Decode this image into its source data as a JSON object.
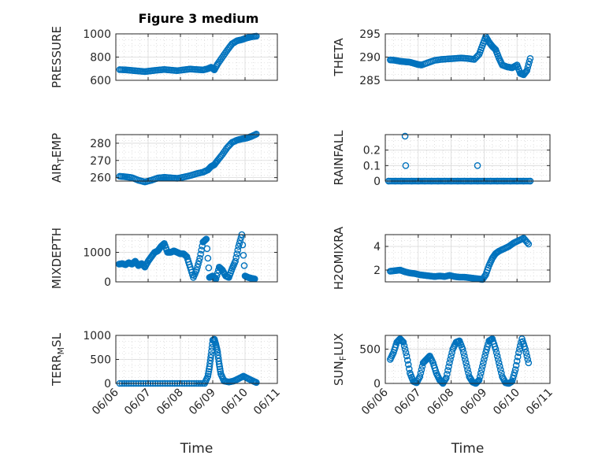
{
  "figure": {
    "title": "Figure 3 medium"
  },
  "colors": {
    "series": "#0072bd",
    "axis": "#262626",
    "grid": "#d9d9d9"
  },
  "chart_data": [
    {
      "type": "scatter",
      "ylabel": "PRESSURE",
      "xlabel": "",
      "title": "Figure 3 medium",
      "xlim": [
        0,
        5
      ],
      "ylim": [
        600,
        1000
      ],
      "yticks": [
        600,
        800,
        1000
      ],
      "xticks": [
        "06/06",
        "06/07",
        "06/08",
        "06/09",
        "06/10",
        "06/11"
      ],
      "show_xticklabels": false,
      "grid": true,
      "series": [
        {
          "x": [
            0.12,
            0.3,
            0.5,
            0.7,
            0.9,
            1.1,
            1.3,
            1.5,
            1.7,
            1.9,
            2.1,
            2.3,
            2.5,
            2.7,
            2.85,
            2.95,
            3.05,
            3.15,
            3.3,
            3.45,
            3.6,
            3.75,
            3.9,
            4.05,
            4.2,
            4.35
          ],
          "y": [
            692,
            690,
            685,
            680,
            675,
            682,
            688,
            693,
            688,
            683,
            690,
            697,
            693,
            689,
            700,
            712,
            690,
            740,
            800,
            860,
            915,
            940,
            950,
            965,
            975,
            980
          ]
        }
      ]
    },
    {
      "type": "scatter",
      "ylabel": "THETA",
      "xlabel": "",
      "title": "",
      "xlim": [
        0,
        5
      ],
      "ylim": [
        285,
        295
      ],
      "yticks": [
        285,
        290,
        295
      ],
      "xticks": [
        "06/06",
        "06/07",
        "06/08",
        "06/09",
        "06/10",
        "06/11"
      ],
      "show_xticklabels": false,
      "grid": true,
      "series": [
        {
          "x": [
            0.15,
            0.3,
            0.45,
            0.6,
            0.75,
            0.9,
            1.0,
            1.1,
            1.3,
            1.5,
            1.7,
            1.9,
            2.1,
            2.3,
            2.5,
            2.7,
            2.85,
            2.95,
            3.05,
            3.15,
            3.25,
            3.35,
            3.45,
            3.55,
            3.7,
            3.85,
            4.0,
            4.1,
            4.2,
            4.3,
            4.4
          ],
          "y": [
            289.4,
            289.3,
            289.1,
            289.0,
            288.9,
            288.6,
            288.4,
            288.3,
            288.8,
            289.3,
            289.5,
            289.6,
            289.7,
            289.8,
            289.7,
            289.5,
            290.6,
            292.5,
            294.4,
            293.2,
            292.3,
            291.6,
            289.8,
            288.3,
            287.9,
            287.7,
            288.3,
            286.5,
            286.2,
            287.1,
            289.7
          ]
        }
      ]
    },
    {
      "type": "scatter",
      "ylabel": "AIR_TEMP",
      "xlabel": "",
      "title": "",
      "xlim": [
        0,
        5
      ],
      "ylim": [
        258,
        285
      ],
      "yticks": [
        260,
        270,
        280
      ],
      "xticks": [
        "06/06",
        "06/07",
        "06/08",
        "06/09",
        "06/10",
        "06/11"
      ],
      "show_xticklabels": false,
      "grid": true,
      "series": [
        {
          "x": [
            0.12,
            0.3,
            0.5,
            0.7,
            0.9,
            1.1,
            1.3,
            1.5,
            1.7,
            1.9,
            2.1,
            2.3,
            2.5,
            2.7,
            2.85,
            2.95,
            3.05,
            3.15,
            3.3,
            3.45,
            3.6,
            3.75,
            3.9,
            4.05,
            4.2,
            4.35
          ],
          "y": [
            260.8,
            260.5,
            260,
            258.5,
            257.5,
            258.5,
            259.8,
            260.2,
            259.9,
            259.6,
            260.3,
            261.2,
            262.3,
            263.2,
            264.5,
            266.5,
            267.5,
            270,
            273.5,
            277.5,
            280.5,
            281.8,
            282.5,
            283,
            284,
            285.3
          ]
        }
      ]
    },
    {
      "type": "scatter",
      "ylabel": "RAINFALL",
      "xlabel": "",
      "title": "",
      "xlim": [
        0,
        5
      ],
      "ylim": [
        0,
        0.3
      ],
      "yticks": [
        0,
        0.1,
        0.2
      ],
      "xticks": [
        "06/06",
        "06/07",
        "06/08",
        "06/09",
        "06/10",
        "06/11"
      ],
      "show_xticklabels": false,
      "grid": true,
      "series": [
        {
          "x": [
            0.1,
            0.3,
            0.5,
            0.6,
            0.62,
            0.8,
            1.0,
            1.2,
            1.4,
            1.6,
            1.8,
            2.0,
            2.2,
            2.4,
            2.6,
            2.8,
            2.8,
            3.0,
            3.2,
            3.4,
            3.6,
            3.8,
            4.0,
            4.2,
            4.4
          ],
          "y": [
            0,
            0,
            0,
            0.29,
            0.1,
            0,
            0,
            0,
            0,
            0,
            0,
            0,
            0,
            0,
            0,
            0.1,
            0,
            0,
            0,
            0,
            0,
            0,
            0,
            0,
            0
          ]
        }
      ]
    },
    {
      "type": "scatter",
      "ylabel": "MIXDEPTH",
      "xlabel": "",
      "title": "",
      "xlim": [
        0,
        5
      ],
      "ylim": [
        0,
        1600
      ],
      "yticks": [
        0,
        1000
      ],
      "xticks": [
        "06/06",
        "06/07",
        "06/08",
        "06/09",
        "06/10",
        "06/11"
      ],
      "show_xticklabels": false,
      "grid": true,
      "series": [
        {
          "x": [
            0.1,
            0.2,
            0.3,
            0.4,
            0.5,
            0.6,
            0.7,
            0.8,
            0.9,
            1.0,
            1.1,
            1.2,
            1.3,
            1.4,
            1.5,
            1.6,
            1.7,
            1.8,
            1.9,
            2.0,
            2.1,
            2.2,
            2.3,
            2.4,
            2.5,
            2.6,
            2.7,
            2.8,
            2.9,
            3.0,
            3.1,
            3.2,
            3.3,
            3.4,
            3.5,
            3.6,
            3.7,
            3.8,
            3.9,
            4.0,
            4.1,
            4.2,
            4.3
          ],
          "y": [
            600,
            620,
            580,
            650,
            600,
            700,
            550,
            620,
            500,
            700,
            850,
            1000,
            1050,
            1200,
            1300,
            1000,
            1000,
            1050,
            1000,
            950,
            950,
            850,
            500,
            150,
            400,
            800,
            1350,
            1450,
            150,
            200,
            100,
            500,
            400,
            200,
            150,
            450,
            700,
            1200,
            1600,
            200,
            150,
            120,
            100
          ]
        }
      ]
    },
    {
      "type": "scatter",
      "ylabel": "H2OMIXRA",
      "xlabel": "",
      "title": "",
      "xlim": [
        0,
        5
      ],
      "ylim": [
        1,
        5
      ],
      "yticks": [
        2,
        4
      ],
      "xticks": [
        "06/06",
        "06/07",
        "06/08",
        "06/09",
        "06/10",
        "06/11"
      ],
      "show_xticklabels": false,
      "grid": true,
      "series": [
        {
          "x": [
            0.15,
            0.3,
            0.45,
            0.6,
            0.75,
            0.9,
            1.05,
            1.2,
            1.35,
            1.5,
            1.65,
            1.8,
            1.95,
            2.1,
            2.25,
            2.4,
            2.55,
            2.7,
            2.85,
            2.95,
            3.05,
            3.15,
            3.25,
            3.35,
            3.45,
            3.6,
            3.75,
            3.9,
            4.05,
            4.2,
            4.35
          ],
          "y": [
            1.9,
            1.95,
            2.0,
            1.85,
            1.75,
            1.7,
            1.6,
            1.55,
            1.5,
            1.45,
            1.5,
            1.45,
            1.55,
            1.45,
            1.4,
            1.4,
            1.35,
            1.3,
            1.25,
            1.2,
            1.6,
            2.4,
            3.0,
            3.4,
            3.6,
            3.8,
            4.0,
            4.3,
            4.5,
            4.7,
            4.2
          ]
        }
      ]
    },
    {
      "type": "scatter",
      "ylabel": "TERR_MSL",
      "xlabel": "Time",
      "title": "",
      "xlim": [
        0,
        5
      ],
      "ylim": [
        0,
        1000
      ],
      "yticks": [
        0,
        500,
        1000
      ],
      "xticks": [
        "06/06",
        "06/07",
        "06/08",
        "06/09",
        "06/10",
        "06/11"
      ],
      "show_xticklabels": true,
      "grid": true,
      "series": [
        {
          "x": [
            0.12,
            0.4,
            0.7,
            1.0,
            1.3,
            1.6,
            1.9,
            2.2,
            2.5,
            2.75,
            2.85,
            2.9,
            2.95,
            3.0,
            3.05,
            3.1,
            3.15,
            3.2,
            3.25,
            3.35,
            3.5,
            3.65,
            3.8,
            3.95,
            4.1,
            4.25,
            4.35
          ],
          "y": [
            0,
            0,
            0,
            0,
            0,
            0,
            0,
            0,
            0,
            0,
            150,
            350,
            600,
            900,
            920,
            800,
            650,
            400,
            200,
            50,
            30,
            50,
            100,
            150,
            100,
            50,
            20
          ]
        }
      ]
    },
    {
      "type": "scatter",
      "ylabel": "SUN_FLUX",
      "xlabel": "Time",
      "title": "",
      "xlim": [
        0,
        5
      ],
      "ylim": [
        0,
        700
      ],
      "yticks": [
        0,
        500
      ],
      "xticks": [
        "06/06",
        "06/07",
        "06/08",
        "06/09",
        "06/10",
        "06/11"
      ],
      "show_xticklabels": true,
      "grid": true,
      "series": [
        {
          "x": [
            0.15,
            0.25,
            0.35,
            0.45,
            0.55,
            0.65,
            0.75,
            0.85,
            0.95,
            1.05,
            1.15,
            1.25,
            1.35,
            1.45,
            1.55,
            1.65,
            1.75,
            1.85,
            1.95,
            2.05,
            2.15,
            2.25,
            2.35,
            2.45,
            2.55,
            2.65,
            2.75,
            2.85,
            2.95,
            3.05,
            3.15,
            3.25,
            3.35,
            3.45,
            3.55,
            3.65,
            3.75,
            3.85,
            3.95,
            4.05,
            4.15,
            4.25,
            4.35
          ],
          "y": [
            350,
            450,
            600,
            650,
            600,
            400,
            150,
            30,
            10,
            100,
            300,
            350,
            400,
            300,
            150,
            50,
            0,
            80,
            300,
            500,
            600,
            620,
            500,
            300,
            100,
            20,
            0,
            50,
            250,
            450,
            620,
            650,
            500,
            300,
            100,
            10,
            0,
            30,
            200,
            450,
            650,
            500,
            300
          ]
        }
      ]
    }
  ]
}
